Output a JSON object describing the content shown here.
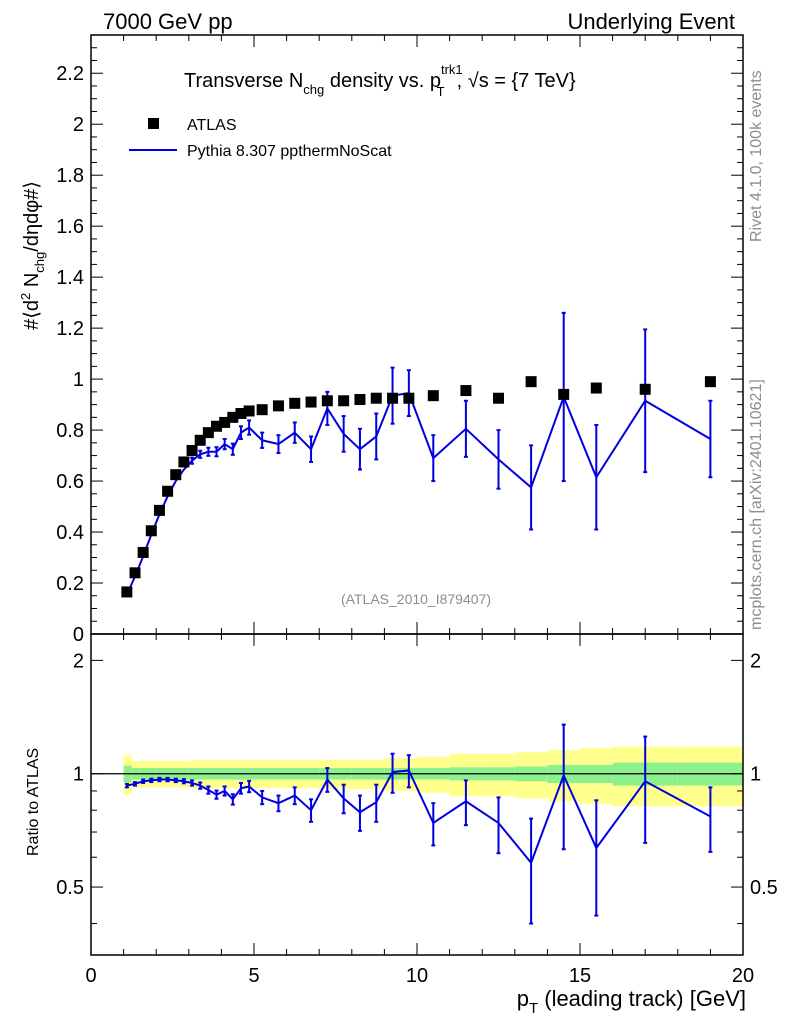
{
  "header": {
    "left": "7000 GeV pp",
    "right": "Underlying Event"
  },
  "side_labels": {
    "rivet": "Rivet 4.1.0,  100k events",
    "mcplots": "mcplots.cern.ch [arXiv:2401.10621]"
  },
  "title": {
    "prefix": "Transverse N",
    "sub1": "chg",
    "middle": " density vs. p",
    "sup": "trk1",
    "sub2": "T",
    "suffix": ", √s = {7 TeV}"
  },
  "analysis_tag": "(ATLAS_2010_I879407)",
  "axes": {
    "ylabel_main": "#⟨d² N_chg/dηdφ#⟩",
    "ylabel_main_parts": [
      "#⟨d",
      "2",
      " N",
      "chg",
      "/dηdφ#⟩"
    ],
    "ylabel_ratio": "Ratio to ATLAS",
    "xlabel_main": "p",
    "xlabel_sub": "T",
    "xlabel_rest": " (leading track) [GeV]",
    "x_ticks": [
      "0",
      "5",
      "10",
      "15",
      "20"
    ],
    "y_ticks_main": [
      "0",
      "0.2",
      "0.4",
      "0.6",
      "0.8",
      "1",
      "1.2",
      "1.4",
      "1.6",
      "1.8",
      "2",
      "2.2"
    ],
    "y_ticks_ratio": [
      "0.5",
      "1",
      "2"
    ]
  },
  "legend": {
    "data_label": "ATLAS",
    "mc_label": "Pythia 8.307 ppthermNoScat"
  },
  "colors": {
    "data": "#000000",
    "mc": "#0000e0",
    "band_inner": "#8cf08c",
    "band_outer": "#ffff8c",
    "tag": "#8c8c8c"
  },
  "chart_data": {
    "type": "line",
    "title": "Transverse N_chg density vs. p_T^trk1, √s = {7 TeV}",
    "xlabel": "p_T (leading track) [GeV]",
    "ylabel": "#⟨d² N_chg/dηdφ#⟩",
    "xlim": [
      0,
      20
    ],
    "ylim": [
      0,
      2.35
    ],
    "ratio_ylim": [
      0.33,
      2.35
    ],
    "x": [
      1.1,
      1.35,
      1.6,
      1.85,
      2.1,
      2.35,
      2.6,
      2.85,
      3.1,
      3.35,
      3.6,
      3.85,
      4.1,
      4.35,
      4.6,
      4.85,
      5.25,
      5.75,
      6.25,
      6.75,
      7.25,
      7.75,
      8.25,
      8.75,
      9.25,
      9.75,
      10.5,
      11.5,
      12.5,
      13.5,
      14.5,
      15.5,
      17.0,
      19.0
    ],
    "series": [
      {
        "name": "ATLAS",
        "style": "markers",
        "values": [
          0.165,
          0.24,
          0.32,
          0.405,
          0.485,
          0.56,
          0.625,
          0.675,
          0.72,
          0.76,
          0.79,
          0.815,
          0.83,
          0.85,
          0.865,
          0.875,
          0.88,
          0.895,
          0.905,
          0.91,
          0.915,
          0.915,
          0.92,
          0.925,
          0.925,
          0.925,
          0.935,
          0.955,
          0.925,
          0.99,
          0.94,
          0.965,
          0.96,
          0.99
        ]
      },
      {
        "name": "Pythia 8.307 ppthermNoScat",
        "style": "line",
        "values": [
          0.155,
          0.225,
          0.305,
          0.39,
          0.47,
          0.54,
          0.6,
          0.645,
          0.68,
          0.705,
          0.715,
          0.715,
          0.745,
          0.725,
          0.79,
          0.81,
          0.76,
          0.745,
          0.79,
          0.725,
          0.885,
          0.785,
          0.725,
          0.775,
          0.935,
          0.945,
          0.69,
          0.805,
          0.685,
          0.575,
          0.93,
          0.615,
          0.915,
          0.765
        ],
        "errors": [
          0.008,
          0.008,
          0.008,
          0.008,
          0.008,
          0.008,
          0.008,
          0.01,
          0.012,
          0.014,
          0.016,
          0.018,
          0.02,
          0.022,
          0.025,
          0.028,
          0.03,
          0.035,
          0.04,
          0.05,
          0.065,
          0.07,
          0.08,
          0.09,
          0.11,
          0.09,
          0.09,
          0.11,
          0.115,
          0.165,
          0.33,
          0.205,
          0.28,
          0.15
        ],
        "ratio": [
          0.93,
          0.94,
          0.955,
          0.96,
          0.965,
          0.965,
          0.96,
          0.955,
          0.945,
          0.93,
          0.905,
          0.88,
          0.9,
          0.855,
          0.915,
          0.925,
          0.865,
          0.835,
          0.875,
          0.8,
          0.965,
          0.86,
          0.79,
          0.84,
          1.01,
          1.02,
          0.74,
          0.845,
          0.74,
          0.58,
          0.99,
          0.635,
          0.955,
          0.77
        ],
        "ratio_errors": [
          0.01,
          0.01,
          0.01,
          0.01,
          0.01,
          0.01,
          0.01,
          0.012,
          0.015,
          0.018,
          0.02,
          0.022,
          0.025,
          0.027,
          0.03,
          0.032,
          0.035,
          0.04,
          0.045,
          0.055,
          0.07,
          0.075,
          0.085,
          0.095,
          0.12,
          0.1,
          0.095,
          0.115,
          0.125,
          0.18,
          0.36,
          0.215,
          0.3,
          0.15
        ]
      }
    ],
    "ratio_band": {
      "x_edges": [
        1.0,
        1.25,
        1.5,
        2.0,
        3.0,
        4.0,
        5.0,
        6.0,
        7.0,
        8.0,
        9.0,
        10.0,
        11.0,
        12.0,
        13.0,
        14.0,
        15.0,
        16.0,
        18.0,
        20.0
      ],
      "inner": [
        0.05,
        0.035,
        0.035,
        0.035,
        0.035,
        0.035,
        0.035,
        0.035,
        0.035,
        0.035,
        0.035,
        0.035,
        0.04,
        0.04,
        0.045,
        0.055,
        0.055,
        0.07,
        0.07,
        0.07
      ],
      "outer": [
        0.12,
        0.08,
        0.08,
        0.08,
        0.085,
        0.085,
        0.085,
        0.085,
        0.09,
        0.09,
        0.1,
        0.11,
        0.13,
        0.13,
        0.14,
        0.155,
        0.17,
        0.18,
        0.18,
        0.18
      ]
    }
  }
}
